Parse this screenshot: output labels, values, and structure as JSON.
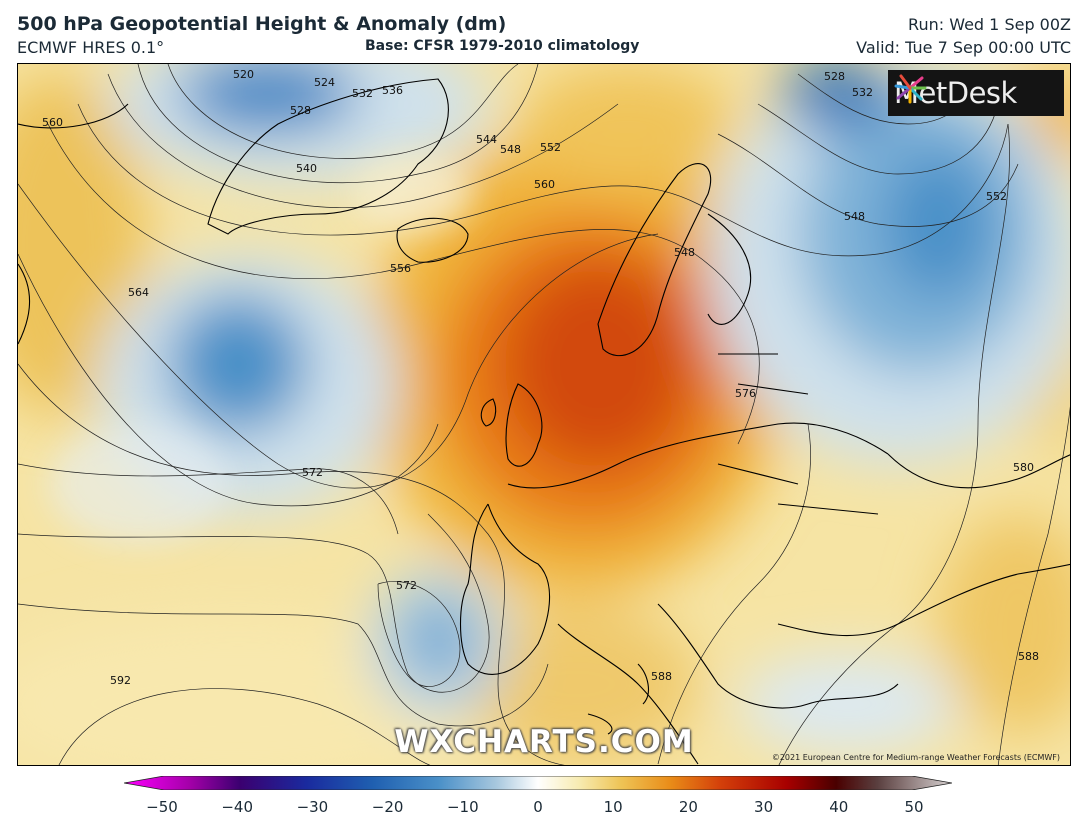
{
  "header": {
    "title": "500 hPa Geopotential Height & Anomaly (dm)",
    "subtitle": "ECMWF HRES 0.1°",
    "base": "Base: CFSR 1979-2010 climatology",
    "run": "Run: Wed 1 Sep 00Z",
    "valid": "Valid: Tue 7 Sep 00:00 UTC"
  },
  "branding": {
    "logo_text": "MetDesk",
    "watermark": "WXCHARTS.COM",
    "copyright": "©2021 European Centre for Medium-range Weather Forecasts (ECMWF)"
  },
  "contour_labels": [
    "520",
    "524",
    "528",
    "532",
    "536",
    "540",
    "544",
    "548",
    "552",
    "556",
    "560",
    "564",
    "572",
    "576",
    "580",
    "588",
    "592"
  ],
  "colorbar": {
    "ticks": [
      "−50",
      "−40",
      "−30",
      "−20",
      "−10",
      "0",
      "10",
      "20",
      "30",
      "40",
      "50"
    ],
    "min": -50,
    "max": 50
  }
}
